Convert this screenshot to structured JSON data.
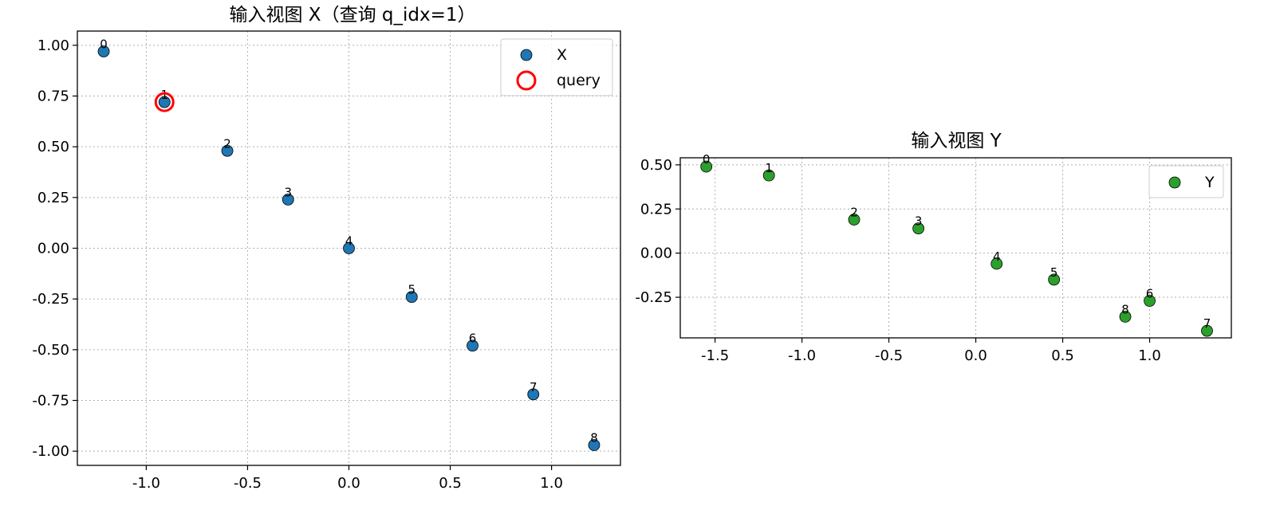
{
  "chart_data": [
    {
      "type": "scatter",
      "title": "输入视图 X（查询 q_idx=1）",
      "xlabel": "",
      "ylabel": "",
      "xlim": [
        -1.34,
        1.34
      ],
      "ylim": [
        -1.07,
        1.07
      ],
      "xticks": [
        -1.0,
        -0.5,
        0.0,
        0.5,
        1.0
      ],
      "xtick_labels": [
        "-1.0",
        "-0.5",
        "0.0",
        "0.5",
        "1.0"
      ],
      "yticks": [
        1.0,
        0.75,
        0.5,
        0.25,
        0.0,
        -0.25,
        -0.5,
        -0.75,
        -1.0
      ],
      "ytick_labels": [
        "1.00",
        "0.75",
        "0.50",
        "0.25",
        "0.00",
        "-0.25",
        "-0.50",
        "-0.75",
        "-1.00"
      ],
      "grid": true,
      "legend_position": "top-right",
      "series": [
        {
          "name": "X",
          "color": "#1f77b4",
          "points": [
            {
              "label": "0",
              "x": -1.21,
              "y": 0.97
            },
            {
              "label": "1",
              "x": -0.91,
              "y": 0.72
            },
            {
              "label": "2",
              "x": -0.6,
              "y": 0.48
            },
            {
              "label": "3",
              "x": -0.3,
              "y": 0.24
            },
            {
              "label": "4",
              "x": 0.0,
              "y": 0.0
            },
            {
              "label": "5",
              "x": 0.31,
              "y": -0.24
            },
            {
              "label": "6",
              "x": 0.61,
              "y": -0.48
            },
            {
              "label": "7",
              "x": 0.91,
              "y": -0.72
            },
            {
              "label": "8",
              "x": 1.21,
              "y": -0.97
            }
          ]
        }
      ],
      "highlight": {
        "name": "query",
        "color": "#ff0000",
        "x": -0.91,
        "y": 0.72
      }
    },
    {
      "type": "scatter",
      "title": "输入视图 Y",
      "xlabel": "",
      "ylabel": "",
      "xlim": [
        -1.7,
        1.47
      ],
      "ylim": [
        -0.48,
        0.54
      ],
      "xticks": [
        -1.5,
        -1.0,
        -0.5,
        0.0,
        0.5,
        1.0
      ],
      "xtick_labels": [
        "-1.5",
        "-1.0",
        "-0.5",
        "0.0",
        "0.5",
        "1.0"
      ],
      "yticks": [
        0.5,
        0.25,
        0.0,
        -0.25
      ],
      "ytick_labels": [
        "0.50",
        "0.25",
        "0.00",
        "-0.25"
      ],
      "grid": true,
      "legend_position": "top-right",
      "series": [
        {
          "name": "Y",
          "color": "#2ca02c",
          "points": [
            {
              "label": "0",
              "x": -1.55,
              "y": 0.49
            },
            {
              "label": "1",
              "x": -1.19,
              "y": 0.44
            },
            {
              "label": "2",
              "x": -0.7,
              "y": 0.19
            },
            {
              "label": "3",
              "x": -0.33,
              "y": 0.14
            },
            {
              "label": "4",
              "x": 0.12,
              "y": -0.06
            },
            {
              "label": "5",
              "x": 0.45,
              "y": -0.15
            },
            {
              "label": "6",
              "x": 1.0,
              "y": -0.27
            },
            {
              "label": "7",
              "x": 1.33,
              "y": -0.44
            },
            {
              "label": "8",
              "x": 0.86,
              "y": -0.36
            }
          ]
        }
      ]
    }
  ]
}
